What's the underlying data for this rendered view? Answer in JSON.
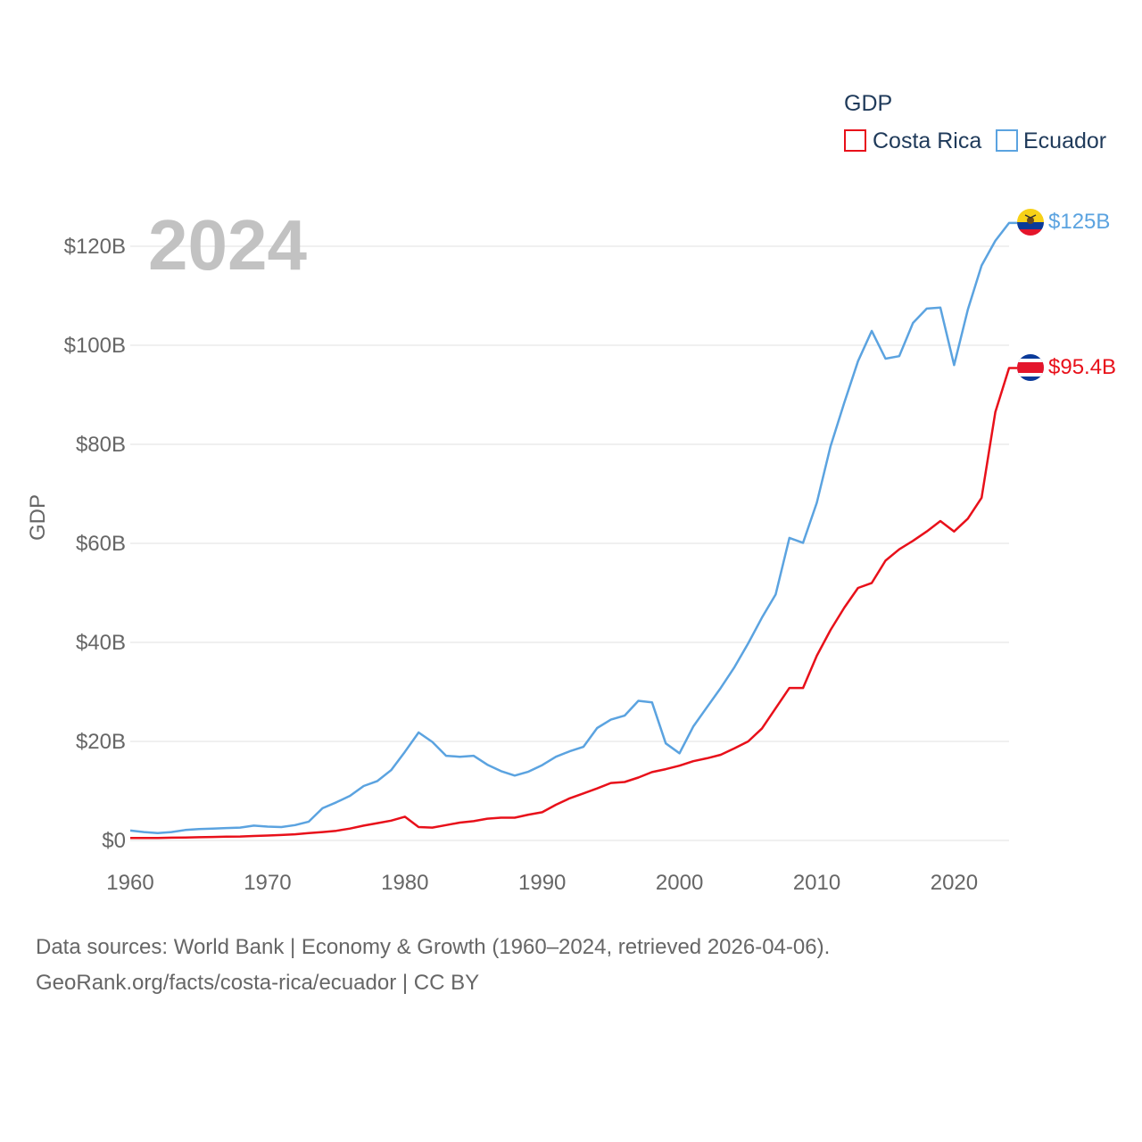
{
  "chart_data": {
    "type": "line",
    "title": "GDP",
    "year_label": "2024",
    "ylabel": "GDP",
    "xlabel": "",
    "xlim": [
      1960,
      2024
    ],
    "ylim": [
      0,
      130
    ],
    "x_ticks": [
      1960,
      1970,
      1980,
      1990,
      2000,
      2010,
      2020
    ],
    "x_tick_labels": [
      "1960",
      "1970",
      "1980",
      "1990",
      "2000",
      "2010",
      "2020"
    ],
    "y_ticks": [
      0,
      20,
      40,
      60,
      80,
      100,
      120
    ],
    "y_tick_labels": [
      "$0",
      "$20B",
      "$40B",
      "$60B",
      "$80B",
      "$100B",
      "$120B"
    ],
    "legend_position": "top-right",
    "grid": true,
    "units": "billions of USD",
    "x": [
      1960,
      1961,
      1962,
      1963,
      1964,
      1965,
      1966,
      1967,
      1968,
      1969,
      1970,
      1971,
      1972,
      1973,
      1974,
      1975,
      1976,
      1977,
      1978,
      1979,
      1980,
      1981,
      1982,
      1983,
      1984,
      1985,
      1986,
      1987,
      1988,
      1989,
      1990,
      1991,
      1992,
      1993,
      1994,
      1995,
      1996,
      1997,
      1998,
      1999,
      2000,
      2001,
      2002,
      2003,
      2004,
      2005,
      2006,
      2007,
      2008,
      2009,
      2010,
      2011,
      2012,
      2013,
      2014,
      2015,
      2016,
      2017,
      2018,
      2019,
      2020,
      2021,
      2022,
      2023,
      2024
    ],
    "series": [
      {
        "name": "Costa Rica",
        "color": "#e8101a",
        "end_label": "$95.4B",
        "values": [
          0.5,
          0.5,
          0.5,
          0.55,
          0.6,
          0.65,
          0.7,
          0.75,
          0.8,
          0.9,
          1.0,
          1.1,
          1.25,
          1.5,
          1.7,
          1.95,
          2.4,
          3.0,
          3.5,
          4.0,
          4.8,
          2.7,
          2.6,
          3.1,
          3.6,
          3.9,
          4.4,
          4.6,
          4.6,
          5.2,
          5.7,
          7.2,
          8.5,
          9.5,
          10.5,
          11.6,
          11.8,
          12.7,
          13.8,
          14.4,
          15.1,
          16.0,
          16.6,
          17.3,
          18.6,
          20.0,
          22.6,
          26.7,
          30.8,
          30.8,
          37.3,
          42.5,
          47.0,
          51.0,
          52.0,
          56.5,
          58.8,
          60.5,
          62.4,
          64.5,
          62.4,
          65.0,
          69.2,
          86.5,
          95.4
        ]
      },
      {
        "name": "Ecuador",
        "color": "#5ba3e0",
        "end_label": "$125B",
        "values": [
          2.0,
          1.7,
          1.5,
          1.7,
          2.1,
          2.3,
          2.4,
          2.5,
          2.6,
          3.0,
          2.8,
          2.7,
          3.1,
          3.8,
          6.5,
          7.7,
          9.0,
          11.0,
          12.0,
          14.2,
          17.9,
          21.8,
          19.9,
          17.1,
          16.9,
          17.1,
          15.3,
          14.0,
          13.1,
          13.9,
          15.2,
          16.9,
          18.0,
          18.9,
          22.7,
          24.4,
          25.2,
          28.2,
          27.9,
          19.6,
          17.6,
          23.0,
          26.9,
          30.8,
          35.0,
          39.8,
          45.0,
          49.7,
          61.1,
          60.1,
          68.2,
          79.6,
          88.4,
          96.8,
          102.9,
          97.3,
          97.8,
          104.5,
          107.4,
          107.6,
          96.0,
          107.2,
          116.1,
          121.1,
          124.7
        ]
      }
    ]
  },
  "source": {
    "line1": "Data sources: World Bank | Economy & Growth (1960–2024, retrieved 2026-04-06).",
    "line2": "GeoRank.org/facts/costa-rica/ecuador | CC BY"
  }
}
